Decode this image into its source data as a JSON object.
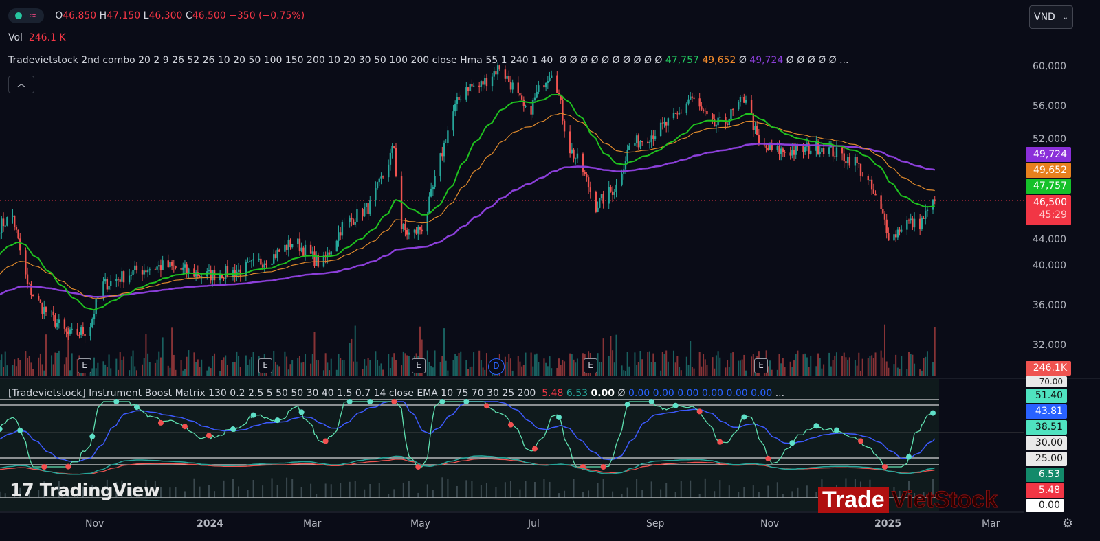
{
  "legend": {
    "ohlc": {
      "o_label": "O",
      "o": "46,850",
      "h_label": "H",
      "h": "47,150",
      "l_label": "L",
      "l": "46,300",
      "c_label": "C",
      "c": "46,500",
      "change": "−350 (−0.75%)"
    },
    "vol_label": "Vol",
    "vol": "246.1 K",
    "indicator1": {
      "name": "Tradevietstock 2nd combo 20 2 9 26 52 26 10 20 50 100 150 200 10 20 30 50 100 200 close Hma 55 1 240 1 40",
      "nulls_a": "Ø Ø Ø Ø Ø Ø Ø Ø Ø Ø",
      "v_green": "47,757",
      "v_orange": "49,652",
      "null_b": "Ø",
      "v_purple": "49,724",
      "nulls_c": "Ø Ø Ø Ø Ø",
      "more": "..."
    },
    "indicator2": {
      "name": "[Tradevietstock] Instrument Boost Matrix 130 0.2 2.5 5 50 50 30 40 1.5 0.7 14 close EMA 10 75 70 30 25 200",
      "v_red": "5.48",
      "v_teal": "6.53",
      "v_white": "0.00",
      "null": "Ø",
      "blues": "0.00 0.00 0.00 0.00 0.00 0.00",
      "more": "..."
    }
  },
  "collapse_icon": "chevron-up-icon",
  "currency": "VND",
  "price_axis": [
    "60,000",
    "56,000",
    "52,000",
    "44,000",
    "40,000",
    "36,000",
    "32,000"
  ],
  "price_tags": {
    "purple": "49,724",
    "orange": "49,652",
    "green": "47,757",
    "last": "46,500",
    "countdown": "45:29",
    "volume": "246.1K"
  },
  "osc_axis": {
    "top": "70.00",
    "t1": "51.40",
    "t2": "43.81",
    "t3": "38.51",
    "t4": "30.00",
    "t5": "25.00",
    "t6": "6.53",
    "t7": "5.48",
    "t8": "0.00"
  },
  "time_axis": [
    "Nov",
    "2024",
    "Mar",
    "May",
    "Jul",
    "Sep",
    "Nov",
    "2025",
    "Mar"
  ],
  "events": {
    "earnings": "E",
    "dividend": "D"
  },
  "logo": "TradingView",
  "watermark": {
    "a": "Trade",
    "b": "VietStock"
  },
  "colors": {
    "up": "#26a69a",
    "down": "#ef5350",
    "ma_fast": "#1fc11f",
    "ma_mid": "#e08a2c",
    "ma_slow": "#8b3fd9"
  },
  "chart_data": {
    "type": "candlestick",
    "ylim": [
      30000,
      62000
    ],
    "anchors": [
      [
        "2023-09-11",
        44000
      ],
      [
        "2023-09-18",
        45000
      ],
      [
        "2023-09-26",
        38000
      ],
      [
        "2023-10-03",
        36000
      ],
      [
        "2023-10-18",
        33000
      ],
      [
        "2023-10-29",
        33500
      ],
      [
        "2023-11-05",
        38000
      ],
      [
        "2023-11-24",
        39500
      ],
      [
        "2023-12-09",
        40000
      ],
      [
        "2023-12-31",
        39000
      ],
      [
        "2024-01-19",
        39500
      ],
      [
        "2024-02-06",
        41000
      ],
      [
        "2024-02-17",
        42500
      ],
      [
        "2024-03-03",
        40000
      ],
      [
        "2024-03-14",
        44000
      ],
      [
        "2024-03-29",
        46000
      ],
      [
        "2024-04-05",
        49000
      ],
      [
        "2024-04-11",
        52000
      ],
      [
        "2024-04-14",
        44000
      ],
      [
        "2024-04-20",
        43000
      ],
      [
        "2024-04-27",
        44000
      ],
      [
        "2024-05-05",
        50000
      ],
      [
        "2024-05-12",
        55000
      ],
      [
        "2024-05-19",
        58000
      ],
      [
        "2024-05-27",
        58000
      ],
      [
        "2024-06-07",
        60000
      ],
      [
        "2024-06-14",
        58000
      ],
      [
        "2024-06-22",
        55000
      ],
      [
        "2024-06-29",
        58000
      ],
      [
        "2024-07-06",
        60000
      ],
      [
        "2024-07-14",
        52000
      ],
      [
        "2024-07-21",
        50000
      ],
      [
        "2024-07-29",
        46000
      ],
      [
        "2024-08-09",
        48000
      ],
      [
        "2024-08-16",
        52000
      ],
      [
        "2024-08-31",
        53500
      ],
      [
        "2024-09-11",
        55000
      ],
      [
        "2024-09-18",
        57000
      ],
      [
        "2024-09-30",
        54000
      ],
      [
        "2024-10-07",
        54500
      ],
      [
        "2024-10-18",
        57000
      ],
      [
        "2024-10-25",
        52000
      ],
      [
        "2024-11-02",
        51500
      ],
      [
        "2024-11-13",
        51500
      ],
      [
        "2024-11-28",
        52000
      ],
      [
        "2024-12-09",
        51000
      ],
      [
        "2024-12-16",
        50500
      ],
      [
        "2024-12-24",
        48000
      ],
      [
        "2025-01-01",
        44500
      ],
      [
        "2025-01-04",
        42500
      ],
      [
        "2025-01-12",
        44500
      ],
      [
        "2025-01-19",
        44000
      ],
      [
        "2025-01-28",
        46500
      ]
    ],
    "last_price": 46500,
    "ma_values": {
      "fast": 47757,
      "mid": 49652,
      "slow": 49724
    }
  }
}
